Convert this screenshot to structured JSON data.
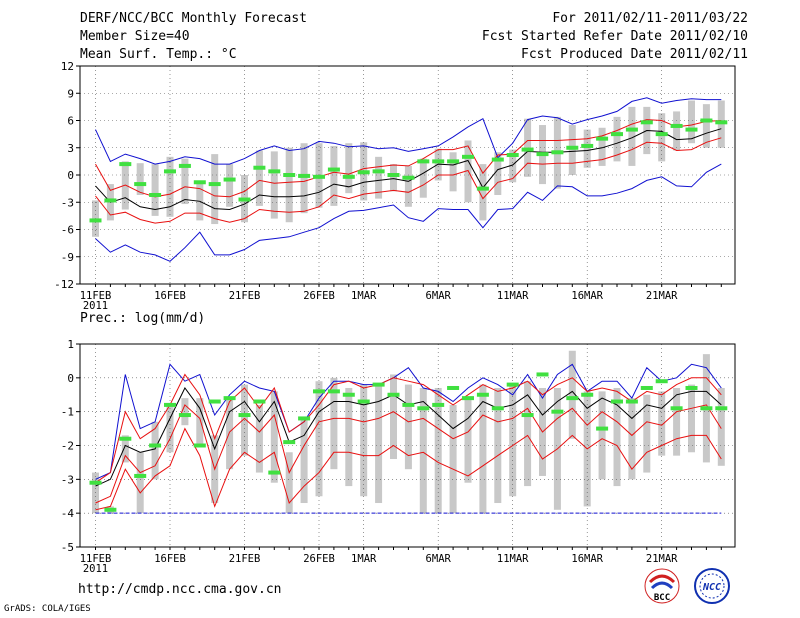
{
  "header": {
    "title": "DERF/NCC/BCC Monthly Forecast",
    "member_size": "Member Size=40",
    "variable": "Mean Surf. Temp.: °C",
    "period": "For 2011/02/11-2011/03/22",
    "fcst_started": "Fcst Started Refer Date 2011/02/10",
    "fcst_produced": "Fcst Produced Date 2011/02/11"
  },
  "footer": {
    "url": "http://cmdp.ncc.cma.gov.cn",
    "grads_credit": "GrADS: COLA/IGES",
    "logo_bcc": "BCC",
    "logo_ncc": "NCC"
  },
  "colors": {
    "mean": "#000000",
    "std_band": "#e81010",
    "extremes": "#1010d0",
    "box": "#c8c8c8",
    "member_marker": "#40e040",
    "floor_line": "#1010d0"
  },
  "chart_data": [
    {
      "type": "line",
      "title": "Mean Surf. Temp.: °C",
      "year_label": "2011",
      "xlabels": [
        "11FEB",
        "16FEB",
        "21FEB",
        "26FEB",
        "1MAR",
        "6MAR",
        "11MAR",
        "16MAR",
        "21MAR"
      ],
      "xlabel_days": [
        0,
        5,
        10,
        15,
        18,
        23,
        28,
        33,
        38
      ],
      "ylim": [
        -12,
        12
      ],
      "yticks": [
        -12,
        -9,
        -6,
        -3,
        0,
        3,
        6,
        9,
        12
      ],
      "grid": true,
      "series": [
        {
          "name": "mean",
          "values": [
            -1.2,
            -3.0,
            -2.5,
            -3.5,
            -3.8,
            -3.5,
            -2.7,
            -2.9,
            -3.7,
            -3.8,
            -3.2,
            -2.2,
            -2.4,
            -2.4,
            -2.3,
            -1.9,
            -1.0,
            -1.3,
            -0.8,
            -0.6,
            -0.4,
            -0.7,
            0.2,
            1.2,
            1.1,
            1.6,
            -1.4,
            0.6,
            1.1,
            2.6,
            2.5,
            2.5,
            2.6,
            2.7,
            3.0,
            3.5,
            4.1,
            4.9,
            4.8,
            3.9,
            4.0,
            4.6,
            5.1
          ]
        },
        {
          "name": "mean_plus_std",
          "values": [
            1.2,
            -1.7,
            -1.1,
            -1.9,
            -2.4,
            -2.1,
            -1.3,
            -1.5,
            -2.3,
            -2.4,
            -1.8,
            -0.6,
            -0.9,
            -0.8,
            -0.7,
            -0.2,
            0.3,
            0.1,
            0.7,
            0.9,
            1.1,
            1.0,
            1.8,
            2.8,
            2.8,
            3.2,
            0.2,
            2.2,
            2.3,
            3.8,
            3.8,
            3.8,
            3.9,
            4.0,
            4.3,
            4.9,
            5.6,
            6.1,
            6.0,
            5.3,
            5.5,
            5.9,
            6.0
          ]
        },
        {
          "name": "mean_minus_std",
          "values": [
            -2.3,
            -4.4,
            -4.1,
            -4.9,
            -5.3,
            -5.1,
            -4.2,
            -4.2,
            -4.8,
            -5.2,
            -4.8,
            -3.8,
            -4.0,
            -4.1,
            -4.0,
            -3.5,
            -2.2,
            -2.6,
            -2.1,
            -1.9,
            -1.7,
            -1.9,
            -1.1,
            0.0,
            0.0,
            0.5,
            -2.6,
            -0.8,
            -0.4,
            1.3,
            1.2,
            1.3,
            1.3,
            1.5,
            1.7,
            2.2,
            2.8,
            3.6,
            3.5,
            2.7,
            2.8,
            3.6,
            4.1
          ]
        },
        {
          "name": "max",
          "values": [
            5.0,
            1.5,
            2.3,
            1.8,
            1.2,
            1.5,
            2.0,
            1.8,
            1.2,
            1.2,
            1.8,
            2.7,
            3.2,
            2.7,
            2.9,
            3.7,
            3.5,
            3.1,
            3.2,
            2.9,
            3.0,
            2.6,
            2.9,
            3.2,
            4.2,
            5.3,
            6.2,
            1.9,
            3.5,
            6.1,
            6.5,
            6.3,
            5.6,
            6.1,
            6.5,
            7.0,
            8.1,
            8.5,
            7.9,
            8.2,
            8.4,
            8.3,
            8.3
          ]
        },
        {
          "name": "min",
          "values": [
            -7.0,
            -8.5,
            -7.7,
            -8.5,
            -8.8,
            -9.5,
            -8.0,
            -6.3,
            -8.8,
            -8.8,
            -8.2,
            -7.2,
            -7.0,
            -6.8,
            -6.3,
            -5.8,
            -4.8,
            -4.0,
            -3.9,
            -3.6,
            -3.3,
            -4.7,
            -5.1,
            -3.7,
            -3.8,
            -3.8,
            -5.8,
            -3.8,
            -3.7,
            -1.9,
            -2.8,
            -1.2,
            -1.3,
            -2.3,
            -2.3,
            -2.0,
            -1.5,
            -0.6,
            -0.2,
            -1.2,
            -1.3,
            0.3,
            1.2
          ]
        },
        {
          "name": "box_high",
          "values": [
            -2.8,
            -1.0,
            1.5,
            1.3,
            1.2,
            2.0,
            1.8,
            -0.8,
            2.3,
            1.2,
            0.0,
            2.7,
            2.6,
            3.0,
            3.5,
            3.5,
            3.2,
            3.5,
            3.6,
            2.0,
            1.2,
            1.0,
            1.8,
            2.9,
            2.5,
            3.8,
            1.2,
            2.5,
            2.8,
            6.2,
            5.5,
            6.4,
            5.5,
            5.0,
            5.2,
            6.4,
            7.5,
            7.5,
            6.8,
            7.0,
            8.2,
            7.8,
            8.2
          ]
        },
        {
          "name": "box_low",
          "values": [
            -6.8,
            -5.0,
            -3.8,
            -2.2,
            -4.5,
            -4.6,
            -3.2,
            -5.0,
            -5.4,
            -3.5,
            -5.2,
            -3.4,
            -4.8,
            -5.2,
            -4.2,
            -3.6,
            -3.4,
            -2.0,
            -2.8,
            -2.6,
            -1.8,
            -3.5,
            -2.5,
            -0.6,
            -1.8,
            -3.0,
            -5.0,
            -2.2,
            -0.8,
            -0.2,
            -1.0,
            -1.5,
            0.0,
            0.8,
            1.0,
            1.5,
            1.0,
            2.3,
            1.5,
            2.7,
            3.5,
            3.0,
            3.0
          ]
        },
        {
          "name": "member",
          "values": [
            -5.0,
            -2.8,
            1.2,
            -1.0,
            -2.2,
            0.4,
            1.0,
            -0.8,
            -1.0,
            -0.5,
            -2.7,
            0.8,
            0.4,
            0.0,
            -0.1,
            -0.2,
            0.6,
            -0.2,
            0.3,
            0.4,
            0.0,
            -0.3,
            1.5,
            1.5,
            1.5,
            2.0,
            -1.5,
            1.7,
            2.2,
            2.8,
            2.3,
            2.5,
            3.0,
            3.2,
            4.0,
            4.5,
            5.0,
            5.8,
            4.5,
            5.4,
            5.0,
            6.0,
            5.8
          ]
        }
      ]
    },
    {
      "type": "line",
      "title": "Prec.: log(mm/d)",
      "year_label": "2011",
      "xlabels": [
        "11FEB",
        "16FEB",
        "21FEB",
        "26FEB",
        "1MAR",
        "6MAR",
        "11MAR",
        "16MAR",
        "21MAR"
      ],
      "xlabel_days": [
        0,
        5,
        10,
        15,
        18,
        23,
        28,
        33,
        38
      ],
      "ylim": [
        -5,
        1
      ],
      "yticks": [
        -5,
        -4,
        -3,
        -2,
        -1,
        0,
        1
      ],
      "grid": true,
      "floor_value": -4,
      "series": [
        {
          "name": "mean",
          "values": [
            -3.2,
            -3.0,
            -2.0,
            -2.2,
            -2.1,
            -1.2,
            -0.3,
            -0.9,
            -2.1,
            -1.0,
            -0.7,
            -1.3,
            -0.7,
            -1.9,
            -1.7,
            -1.0,
            -0.7,
            -0.7,
            -0.8,
            -0.7,
            -0.5,
            -0.8,
            -0.7,
            -1.1,
            -1.5,
            -1.2,
            -0.7,
            -0.9,
            -0.8,
            -0.5,
            -1.1,
            -0.7,
            -0.4,
            -0.9,
            -0.6,
            -0.8,
            -1.2,
            -0.8,
            -0.9,
            -0.5,
            -0.4,
            -0.4,
            -0.8
          ]
        },
        {
          "name": "mean_plus_std",
          "values": [
            -3.1,
            -2.8,
            -1.0,
            -1.8,
            -1.5,
            -0.8,
            0.1,
            -0.5,
            -1.8,
            -0.7,
            -0.3,
            -0.9,
            -0.3,
            -1.6,
            -1.3,
            -0.8,
            -0.2,
            -0.1,
            -0.3,
            -0.2,
            0.0,
            -0.1,
            -0.2,
            -0.5,
            -0.8,
            -0.5,
            -0.2,
            -0.4,
            -0.3,
            -0.1,
            -0.5,
            -0.2,
            0.0,
            -0.4,
            -0.3,
            -0.4,
            -0.7,
            -0.4,
            -0.5,
            -0.2,
            0.0,
            0.0,
            -0.5
          ]
        },
        {
          "name": "mean_minus_std",
          "values": [
            -3.7,
            -3.5,
            -2.3,
            -2.8,
            -2.6,
            -1.8,
            -0.8,
            -1.2,
            -2.7,
            -1.6,
            -1.2,
            -1.6,
            -1.1,
            -2.8,
            -2.0,
            -1.3,
            -1.2,
            -1.2,
            -1.3,
            -1.2,
            -1.0,
            -1.3,
            -1.2,
            -1.5,
            -1.8,
            -1.6,
            -1.1,
            -1.3,
            -1.2,
            -0.9,
            -1.6,
            -1.2,
            -0.9,
            -1.4,
            -1.0,
            -1.3,
            -1.7,
            -1.3,
            -1.4,
            -1.0,
            -0.9,
            -0.8,
            -1.5
          ]
        },
        {
          "name": "p10",
          "values": [
            -3.9,
            -3.8,
            -2.7,
            -3.4,
            -2.9,
            -2.6,
            -1.5,
            -2.3,
            -3.8,
            -2.7,
            -2.2,
            -2.5,
            -2.2,
            -3.7,
            -3.2,
            -2.8,
            -2.2,
            -2.2,
            -2.3,
            -2.3,
            -2.0,
            -2.3,
            -2.2,
            -2.5,
            -2.7,
            -2.9,
            -2.6,
            -2.3,
            -2.0,
            -1.7,
            -2.4,
            -2.1,
            -1.7,
            -2.1,
            -1.8,
            -2.0,
            -2.7,
            -2.2,
            -2.0,
            -1.8,
            -1.7,
            -1.7,
            -2.4
          ]
        },
        {
          "name": "max",
          "values": [
            -3.0,
            -2.8,
            0.1,
            -1.5,
            -1.3,
            0.4,
            -0.1,
            0.1,
            -1.1,
            -0.5,
            -0.1,
            -0.3,
            -0.4,
            -1.6,
            -1.3,
            -0.6,
            -0.1,
            -0.1,
            -0.2,
            -0.2,
            0.0,
            0.3,
            -0.3,
            -0.4,
            -0.7,
            -0.3,
            0.0,
            -0.2,
            -0.5,
            0.1,
            -0.6,
            0.1,
            0.4,
            -0.4,
            -0.1,
            -0.1,
            -0.6,
            0.3,
            -0.1,
            0.0,
            0.4,
            0.3,
            -0.3
          ]
        },
        {
          "name": "box_high",
          "values": [
            -2.8,
            -3.8,
            -1.7,
            -2.2,
            -1.3,
            -0.8,
            -0.6,
            -0.6,
            -1.7,
            -0.6,
            -0.2,
            -0.8,
            -0.4,
            -2.2,
            -1.2,
            -0.1,
            0.0,
            -0.3,
            -0.2,
            -0.2,
            0.1,
            -0.2,
            -0.3,
            -0.3,
            -0.8,
            -0.6,
            -0.2,
            -0.3,
            -0.2,
            -0.1,
            -0.3,
            -0.3,
            0.8,
            -0.4,
            -0.4,
            -0.3,
            -0.6,
            -0.5,
            -0.4,
            -0.3,
            -0.2,
            0.7,
            -0.3
          ]
        },
        {
          "name": "box_low",
          "values": [
            -4.0,
            -4.0,
            -2.5,
            -4.0,
            -3.0,
            -2.2,
            -1.4,
            -2.0,
            -3.7,
            -2.7,
            -2.3,
            -2.8,
            -3.1,
            -4.0,
            -3.7,
            -3.5,
            -2.7,
            -3.2,
            -3.5,
            -3.7,
            -2.4,
            -2.7,
            -4.0,
            -4.0,
            -4.0,
            -3.1,
            -4.0,
            -3.7,
            -3.5,
            -3.2,
            -2.9,
            -3.9,
            -1.8,
            -3.8,
            -3.0,
            -3.2,
            -3.0,
            -2.8,
            -2.3,
            -2.3,
            -2.2,
            -2.5,
            -2.6
          ]
        },
        {
          "name": "member",
          "values": [
            -3.1,
            -3.9,
            -1.8,
            -2.9,
            -2.0,
            -0.8,
            -1.1,
            -2.0,
            -0.7,
            -0.6,
            -1.1,
            -0.7,
            -2.8,
            -1.9,
            -1.2,
            -0.4,
            -0.4,
            -0.5,
            -0.7,
            -0.2,
            -0.5,
            -0.8,
            -0.9,
            -0.8,
            -0.3,
            -0.6,
            -0.5,
            -0.9,
            -0.2,
            -1.1,
            0.1,
            -1.0,
            -0.6,
            -0.5,
            -1.5,
            -0.7,
            -0.7,
            -0.3,
            -0.1,
            -0.9,
            -0.3,
            -0.9,
            -0.9
          ]
        }
      ]
    }
  ]
}
